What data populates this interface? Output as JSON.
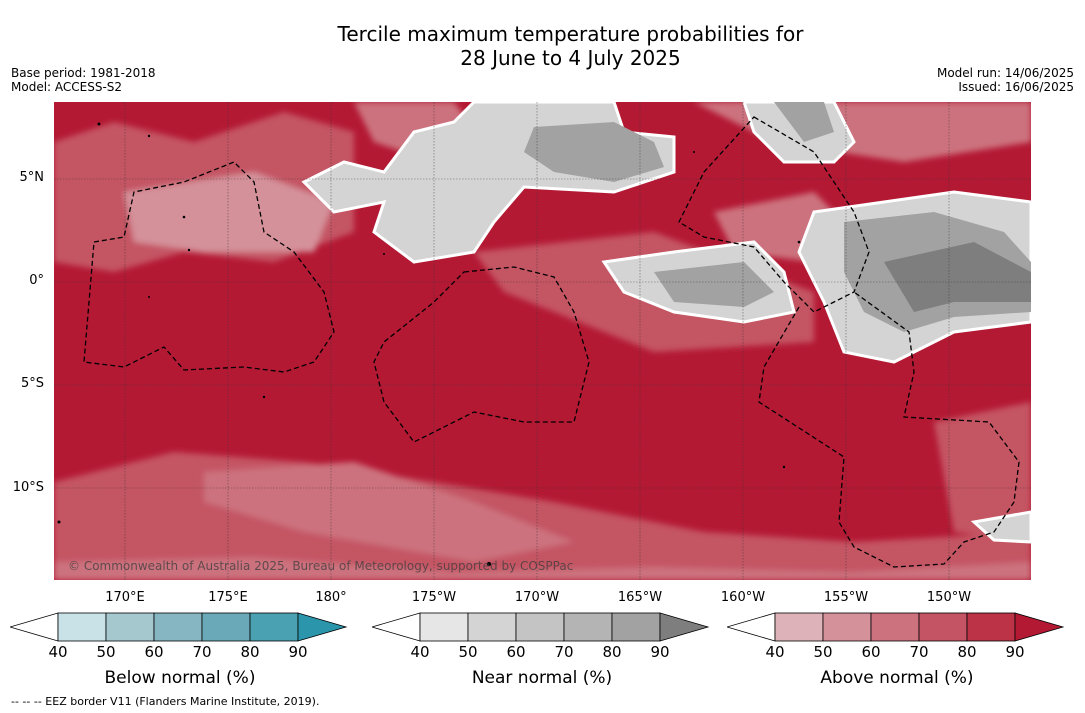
{
  "title_line1": "Tercile maximum temperature probabilities for",
  "title_line2": "28 June to 4 July 2025",
  "base_period": "Base period: 1981-2018",
  "model": "Model: ACCESS-S2",
  "model_run": "Model run: 14/06/2025",
  "issued": "Issued: 16/06/2025",
  "lat_labels": [
    "5°N",
    "0°",
    "5°S",
    "10°S"
  ],
  "lon_labels": [
    "170°E",
    "175°E",
    "180°",
    "175°W",
    "170°W",
    "165°W",
    "160°W",
    "155°W",
    "150°W"
  ],
  "copyright": "© Commonwealth of Australia 2025, Bureau of Meteorology, supported by COSPPac",
  "legend": {
    "ticks": [
      "40",
      "50",
      "60",
      "70",
      "80",
      "90"
    ],
    "below": {
      "label": "Below normal (%)",
      "colors": [
        "#ffffff",
        "#c9e2e8",
        "#a5c8cf",
        "#86b6c1",
        "#6aa9b8",
        "#4aa1b1",
        "#2a95ab"
      ]
    },
    "near": {
      "label": "Near normal (%)",
      "colors": [
        "#ffffff",
        "#e6e6e6",
        "#d4d4d4",
        "#c4c4c4",
        "#b4b4b4",
        "#a2a2a2",
        "#7e7e7e"
      ]
    },
    "above": {
      "label": "Above normal (%)",
      "colors": [
        "#ffffff",
        "#ddb3b9",
        "#d4919a",
        "#cc727e",
        "#c45463",
        "#bc3348",
        "#b41934"
      ]
    }
  },
  "footnote": "--  --  -- EEZ border V11 (Flanders Marine Institute, 2019)."
}
